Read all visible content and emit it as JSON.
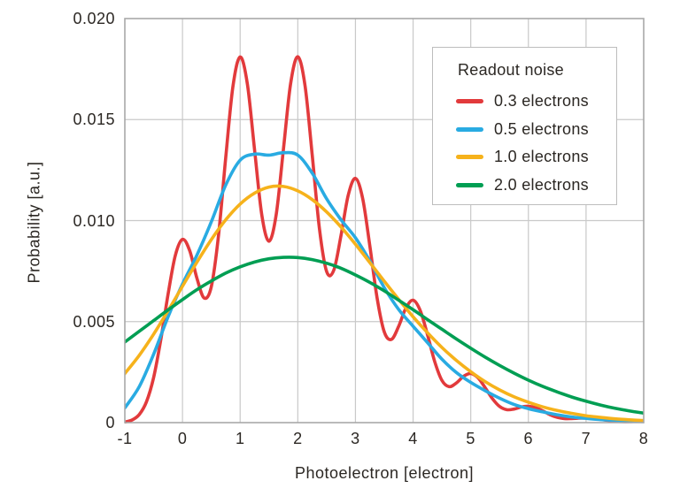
{
  "chart_data": {
    "type": "line",
    "title": "",
    "xlabel": "Photoelectron [electron]",
    "ylabel": "Probability [a.u.]",
    "xlim": [
      -1,
      8
    ],
    "ylim": [
      0,
      0.02
    ],
    "grid": true,
    "x_ticks": [
      -1,
      0,
      1,
      2,
      3,
      4,
      5,
      6,
      7,
      8
    ],
    "x_tick_labels": [
      "-1",
      "0",
      "1",
      "2",
      "3",
      "4",
      "5",
      "6",
      "7",
      "8"
    ],
    "y_ticks": [
      0,
      0.005,
      0.01,
      0.015,
      0.02
    ],
    "y_tick_labels": [
      "0",
      "0.005",
      "0.010",
      "0.015",
      "0.020"
    ],
    "legend": {
      "title": "Readout noise",
      "position": "top-right"
    },
    "series": [
      {
        "name": "0.3 electrons",
        "color": "#e23a3c",
        "x": [
          -1,
          -0.875,
          -0.75,
          -0.625,
          -0.5,
          -0.375,
          -0.25,
          -0.125,
          0,
          0.125,
          0.25,
          0.375,
          0.5,
          0.625,
          0.75,
          0.875,
          1,
          1.125,
          1.25,
          1.375,
          1.5,
          1.625,
          1.75,
          1.875,
          2,
          2.125,
          2.25,
          2.375,
          2.5,
          2.625,
          2.75,
          2.875,
          3,
          3.125,
          3.25,
          3.375,
          3.5,
          3.625,
          3.75,
          3.875,
          4,
          4.125,
          4.25,
          4.375,
          4.5,
          4.625,
          4.75,
          4.875,
          5,
          5.125,
          5.25,
          5.375,
          5.5,
          5.625,
          5.75,
          5.875,
          6,
          6.125,
          6.25,
          6.375,
          6.5,
          6.625,
          6.75,
          6.875,
          7,
          7.125,
          7.25,
          7.375,
          7.5,
          7.625,
          7.75,
          7.875,
          8
        ],
        "y": [
          3e-05,
          0.00013,
          0.0004,
          0.00103,
          0.00224,
          0.00412,
          0.00636,
          0.00827,
          0.00907,
          0.00851,
          0.00715,
          0.00617,
          0.00673,
          0.00927,
          0.01312,
          0.01664,
          0.0181,
          0.01677,
          0.01351,
          0.01029,
          0.00898,
          0.01029,
          0.01351,
          0.01677,
          0.01811,
          0.01669,
          0.01325,
          0.00961,
          0.00748,
          0.00755,
          0.00927,
          0.01126,
          0.01209,
          0.0111,
          0.00874,
          0.00618,
          0.00449,
          0.00412,
          0.00477,
          0.00567,
          0.00606,
          0.00554,
          0.00435,
          0.00302,
          0.00209,
          0.00178,
          0.00196,
          0.00229,
          0.00243,
          0.00222,
          0.00173,
          0.00119,
          0.0008,
          0.00064,
          0.00067,
          0.00077,
          0.00081,
          0.00074,
          0.00058,
          0.00039,
          0.00026,
          0.0002,
          0.0002,
          0.00022,
          0.00023,
          0.00021,
          0.00016,
          0.00011,
          7e-05,
          5e-05,
          5e-05,
          6e-05,
          6e-05
        ]
      },
      {
        "name": "0.5 electrons",
        "color": "#29abe2",
        "x": [
          -1,
          -0.75,
          -0.5,
          -0.25,
          0,
          0.25,
          0.5,
          0.75,
          1,
          1.25,
          1.5,
          1.75,
          2,
          2.25,
          2.5,
          2.75,
          3,
          3.25,
          3.5,
          3.75,
          4,
          4.25,
          4.5,
          4.75,
          5,
          5.25,
          5.5,
          5.75,
          6,
          6.25,
          6.5,
          6.75,
          7,
          7.25,
          7.5,
          7.75,
          8
        ],
        "y": [
          0.00073,
          0.00178,
          0.00339,
          0.00524,
          0.00686,
          0.00829,
          0.00994,
          0.01176,
          0.01299,
          0.01329,
          0.01324,
          0.01336,
          0.01324,
          0.01235,
          0.01108,
          0.01004,
          0.00915,
          0.008,
          0.00668,
          0.0056,
          0.00477,
          0.00396,
          0.00314,
          0.00248,
          0.00199,
          0.00158,
          0.00121,
          0.0009,
          0.00069,
          0.00053,
          0.00039,
          0.00028,
          0.00021,
          0.00015,
          0.00011,
          8e-05,
          5e-05
        ]
      },
      {
        "name": "1.0 electrons",
        "color": "#f6b21b",
        "x": [
          -1,
          -0.75,
          -0.5,
          -0.25,
          0,
          0.25,
          0.5,
          0.75,
          1,
          1.25,
          1.5,
          1.75,
          2,
          2.25,
          2.5,
          2.75,
          3,
          3.25,
          3.5,
          3.75,
          4,
          4.25,
          4.5,
          4.75,
          5,
          5.25,
          5.5,
          5.75,
          6,
          6.25,
          6.5,
          6.75,
          7,
          7.25,
          7.5,
          7.75,
          8
        ],
        "y": [
          0.00243,
          0.00333,
          0.00438,
          0.00554,
          0.00675,
          0.00794,
          0.00906,
          0.01004,
          0.01082,
          0.01136,
          0.01166,
          0.01169,
          0.01147,
          0.01104,
          0.01043,
          0.00968,
          0.00883,
          0.00792,
          0.007,
          0.0061,
          0.00524,
          0.00445,
          0.00372,
          0.00308,
          0.00252,
          0.00203,
          0.00162,
          0.00128,
          0.00101,
          0.00078,
          0.0006,
          0.00046,
          0.00034,
          0.00026,
          0.00019,
          0.00014,
          0.0001
        ]
      },
      {
        "name": "2.0 electrons",
        "color": "#009e53",
        "x": [
          -1,
          -0.75,
          -0.5,
          -0.25,
          0,
          0.25,
          0.5,
          0.75,
          1,
          1.25,
          1.5,
          1.75,
          2,
          2.25,
          2.5,
          2.75,
          3,
          3.25,
          3.5,
          3.75,
          4,
          4.25,
          4.5,
          4.75,
          5,
          5.25,
          5.5,
          5.75,
          6,
          6.25,
          6.5,
          6.75,
          7,
          7.25,
          7.5,
          7.75,
          8
        ],
        "y": [
          0.00399,
          0.00452,
          0.00505,
          0.00558,
          0.00609,
          0.00658,
          0.00701,
          0.0074,
          0.00771,
          0.00795,
          0.00811,
          0.00818,
          0.00817,
          0.00807,
          0.00789,
          0.00764,
          0.00731,
          0.00694,
          0.00652,
          0.00606,
          0.00559,
          0.0051,
          0.00462,
          0.00414,
          0.00368,
          0.00324,
          0.00283,
          0.00245,
          0.0021,
          0.00179,
          0.00152,
          0.00127,
          0.00106,
          0.00087,
          0.00071,
          0.00058,
          0.00047
        ]
      }
    ]
  },
  "colors": {
    "background": "#ffffff",
    "grid": "#c9c9c9",
    "axis_border": "#a8a8a8",
    "text": "#2b2723",
    "legend_border": "#bdbdbd"
  }
}
